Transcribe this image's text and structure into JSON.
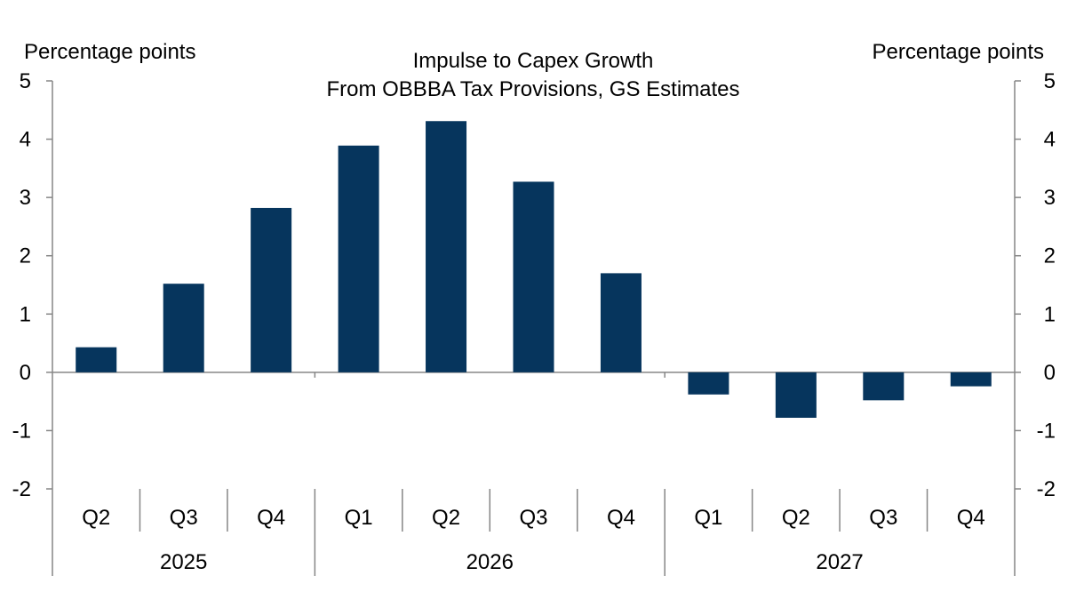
{
  "chart_data": {
    "type": "bar",
    "title_line1": "Impulse to Capex Growth",
    "title_line2": "From OBBBA Tax Provisions, GS Estimates",
    "ylabel_left": "Percentage points",
    "ylabel_right": "Percentage points",
    "ylim": [
      -2,
      5
    ],
    "yticks": [
      5,
      4,
      3,
      2,
      1,
      0,
      -1,
      -2
    ],
    "yticks_text": [
      "5",
      "4",
      "3",
      "2",
      "1",
      "0",
      "-1",
      "-2"
    ],
    "categories": [
      "Q2",
      "Q3",
      "Q4",
      "Q1",
      "Q2",
      "Q3",
      "Q4",
      "Q1",
      "Q2",
      "Q3",
      "Q4"
    ],
    "values": [
      0.43,
      1.52,
      2.82,
      3.89,
      4.31,
      3.27,
      1.7,
      -0.38,
      -0.78,
      -0.48,
      -0.24
    ],
    "year_groups": [
      {
        "label": "2025",
        "start": 0,
        "count": 3
      },
      {
        "label": "2026",
        "start": 3,
        "count": 4
      },
      {
        "label": "2027",
        "start": 7,
        "count": 4
      }
    ],
    "bar_color": "#06355d",
    "grid": false
  }
}
